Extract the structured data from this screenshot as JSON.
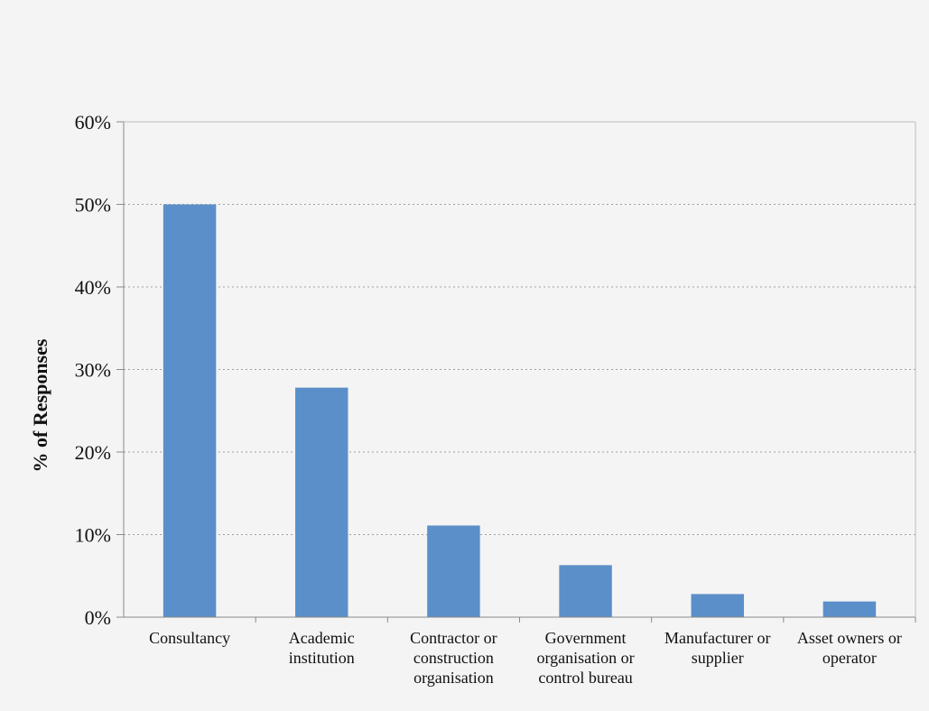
{
  "chart_data": {
    "type": "bar",
    "title": "",
    "xlabel": "",
    "ylabel": "% of Responses",
    "ylim": [
      0,
      60
    ],
    "yticks": [
      0,
      10,
      20,
      30,
      40,
      50,
      60
    ],
    "ytick_labels": [
      "0%",
      "10%",
      "20%",
      "30%",
      "40%",
      "50%",
      "60%"
    ],
    "grid": "horizontal dotted",
    "legend": "none",
    "bar_color": "#5b8fc9",
    "categories": [
      [
        "Consultancy"
      ],
      [
        "Academic",
        "institution"
      ],
      [
        "Contractor or",
        "construction",
        "organisation"
      ],
      [
        "Government",
        "organisation or",
        "control bureau"
      ],
      [
        "Manufacturer or",
        "supplier"
      ],
      [
        "Asset owners or",
        "operator"
      ]
    ],
    "values": [
      50.0,
      27.8,
      11.1,
      6.3,
      2.8,
      1.9
    ]
  }
}
